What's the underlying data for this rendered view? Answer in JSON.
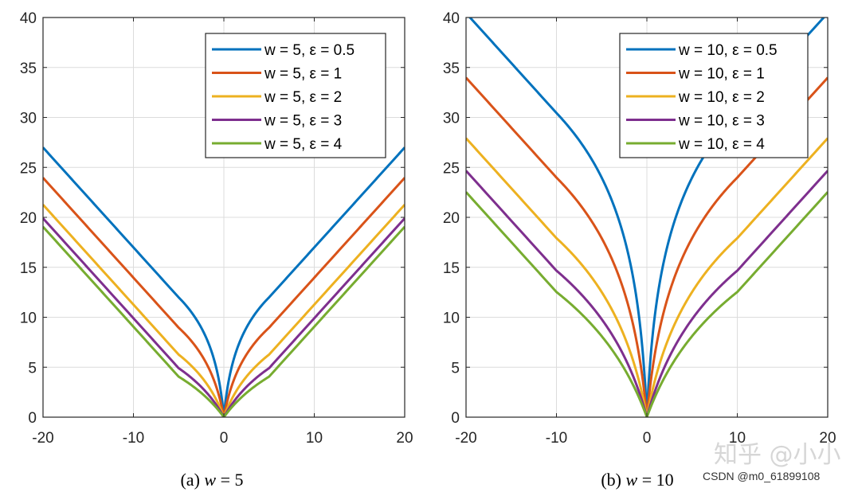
{
  "chart_data": [
    {
      "type": "line",
      "caption": "(a) w = 5",
      "caption_prefix": "(a) ",
      "caption_var": "w",
      "caption_rest": " = 5",
      "xlim": [
        -20,
        20
      ],
      "ylim": [
        0,
        40
      ],
      "xticks": [
        -20,
        -10,
        0,
        10,
        20
      ],
      "xtick_labels": [
        "-20",
        "-10",
        "0",
        "10",
        "20"
      ],
      "yticks": [
        0,
        5,
        10,
        15,
        20,
        25,
        30,
        35,
        40
      ],
      "ytick_labels": [
        "0",
        "5",
        "10",
        "15",
        "20",
        "25",
        "30",
        "35",
        "40"
      ],
      "grid": true,
      "legend_location": "top-right",
      "w": 5,
      "series": [
        {
          "name": "w = 5, ε = 0.5",
          "epsilon": 0.5,
          "color": "#0072BD"
        },
        {
          "name": "w = 5, ε = 1",
          "epsilon": 1,
          "color": "#D95319"
        },
        {
          "name": "w = 5, ε = 2",
          "epsilon": 2,
          "color": "#EDB120"
        },
        {
          "name": "w = 5, ε = 3",
          "epsilon": 3,
          "color": "#7E2F8E"
        },
        {
          "name": "w = 5, ε = 4",
          "epsilon": 4,
          "color": "#77AC30"
        }
      ]
    },
    {
      "type": "line",
      "caption": "(b) w = 10",
      "caption_prefix": "(b) ",
      "caption_var": "w",
      "caption_rest": " = 10",
      "xlim": [
        -20,
        20
      ],
      "ylim": [
        0,
        40
      ],
      "xticks": [
        -20,
        -10,
        0,
        10,
        20
      ],
      "xtick_labels": [
        "-20",
        "-10",
        "0",
        "10",
        "20"
      ],
      "yticks": [
        0,
        5,
        10,
        15,
        20,
        25,
        30,
        35,
        40
      ],
      "ytick_labels": [
        "0",
        "5",
        "10",
        "15",
        "20",
        "25",
        "30",
        "35",
        "40"
      ],
      "grid": true,
      "legend_location": "top-right",
      "w": 10,
      "series": [
        {
          "name": "w = 10, ε = 0.5",
          "epsilon": 0.5,
          "color": "#0072BD"
        },
        {
          "name": "w = 10, ε = 1",
          "epsilon": 1,
          "color": "#D95319"
        },
        {
          "name": "w = 10, ε = 2",
          "epsilon": 2,
          "color": "#EDB120"
        },
        {
          "name": "w = 10, ε = 3",
          "epsilon": 3,
          "color": "#7E2F8E"
        },
        {
          "name": "w = 10, ε = 4",
          "epsilon": 4,
          "color": "#77AC30"
        }
      ]
    }
  ],
  "watermark": {
    "zhihu": "知乎 @小小",
    "csdn": "CSDN @m0_61899108"
  }
}
